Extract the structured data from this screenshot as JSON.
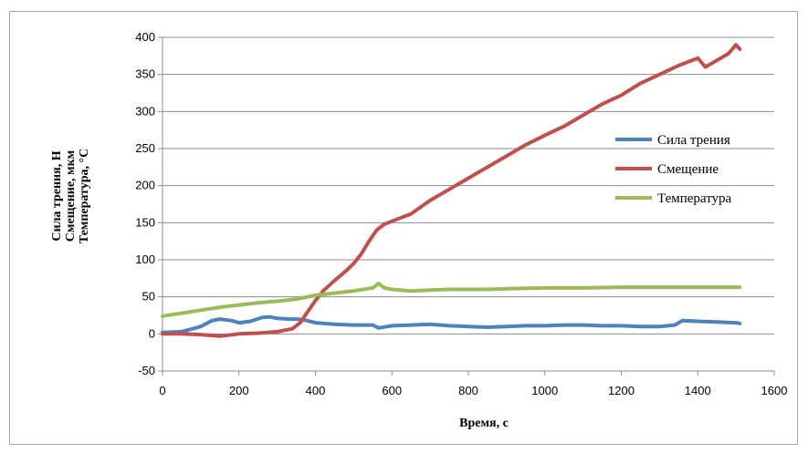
{
  "chart_data": {
    "type": "line",
    "title": "",
    "xlabel": "Время, с",
    "ylabel_lines": [
      "Сила трения, Н",
      "Смещение, мкм",
      "Температура, °С"
    ],
    "xlim": [
      0,
      1600
    ],
    "ylim": [
      -50,
      400
    ],
    "xticks": [
      "0",
      "200",
      "400",
      "600",
      "800",
      "1000",
      "1200",
      "1400",
      "1600"
    ],
    "yticks": [
      "400",
      "350",
      "300",
      "250",
      "200",
      "150",
      "100",
      "50",
      "0",
      "-50"
    ],
    "grid": "horizontal",
    "legend_position": "right",
    "series": [
      {
        "name": "Сила трения",
        "color": "#4f81bd",
        "x": [
          0,
          50,
          100,
          130,
          150,
          180,
          200,
          230,
          260,
          280,
          300,
          330,
          350,
          370,
          400,
          450,
          500,
          550,
          565,
          600,
          650,
          700,
          750,
          800,
          850,
          900,
          950,
          1000,
          1050,
          1100,
          1150,
          1200,
          1250,
          1300,
          1340,
          1360,
          1400,
          1450,
          1500,
          1510
        ],
        "y": [
          2,
          3,
          10,
          18,
          20,
          18,
          15,
          17,
          22,
          23,
          21,
          20,
          20,
          19,
          15,
          13,
          12,
          12,
          8,
          11,
          12,
          13,
          11,
          10,
          9,
          10,
          11,
          11,
          12,
          12,
          11,
          11,
          10,
          10,
          12,
          18,
          17,
          16,
          15,
          14
        ]
      },
      {
        "name": "Смещение",
        "color": "#c0504d",
        "x": [
          0,
          50,
          100,
          150,
          200,
          250,
          300,
          340,
          360,
          380,
          400,
          420,
          450,
          480,
          500,
          520,
          540,
          560,
          580,
          600,
          650,
          700,
          750,
          800,
          850,
          900,
          950,
          1000,
          1050,
          1100,
          1150,
          1200,
          1250,
          1300,
          1350,
          1400,
          1420,
          1440,
          1480,
          1500,
          1510
        ],
        "y": [
          0,
          0,
          -1,
          -3,
          0,
          1,
          3,
          7,
          15,
          30,
          45,
          58,
          72,
          85,
          95,
          108,
          125,
          140,
          148,
          152,
          162,
          180,
          195,
          210,
          225,
          240,
          255,
          268,
          280,
          295,
          310,
          322,
          338,
          350,
          362,
          372,
          360,
          366,
          378,
          390,
          384
        ]
      },
      {
        "name": "Температура",
        "color": "#9bbb59",
        "x": [
          0,
          50,
          100,
          150,
          200,
          250,
          300,
          350,
          400,
          450,
          500,
          550,
          565,
          580,
          600,
          650,
          700,
          750,
          800,
          850,
          900,
          1000,
          1100,
          1200,
          1300,
          1400,
          1500,
          1510
        ],
        "y": [
          24,
          28,
          32,
          36,
          39,
          42,
          44,
          47,
          52,
          55,
          58,
          62,
          68,
          62,
          60,
          58,
          59,
          60,
          60,
          60,
          61,
          62,
          62,
          63,
          63,
          63,
          63,
          63
        ]
      }
    ]
  }
}
